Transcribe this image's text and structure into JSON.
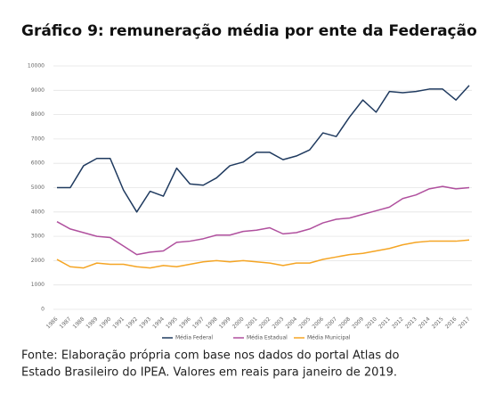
{
  "chart_data": {
    "type": "line",
    "title": "Gráfico 9: remuneração média por ente da Federação",
    "source": [
      "Fonte: Elaboração própria com base nos dados do portal Atlas do",
      "Estado Brasileiro do IPEA. Valores em reais para janeiro de 2019."
    ],
    "categories": [
      "1986",
      "1987",
      "1988",
      "1989",
      "1990",
      "1991",
      "1992",
      "1993",
      "1994",
      "1995",
      "1996",
      "1997",
      "1998",
      "1999",
      "2000",
      "2001",
      "2002",
      "2003",
      "2004",
      "2005",
      "2006",
      "2007",
      "2008",
      "2009",
      "2010",
      "2011",
      "2012",
      "2013",
      "2014",
      "2015",
      "2016",
      "2017"
    ],
    "series": [
      {
        "name": "Média Federal",
        "color": "#1f3a5f",
        "values": [
          5000,
          5000,
          5900,
          6200,
          6200,
          4900,
          4000,
          4850,
          4650,
          5800,
          5150,
          5100,
          5400,
          5900,
          6050,
          6450,
          6450,
          6150,
          6300,
          6550,
          7250,
          7100,
          7900,
          8600,
          8100,
          8950,
          8900,
          8950,
          9050,
          9050,
          8600,
          9200
        ]
      },
      {
        "name": "Média Estadual",
        "color": "#b0509e",
        "values": [
          3600,
          3300,
          3150,
          3000,
          2950,
          2600,
          2250,
          2350,
          2400,
          2750,
          2800,
          2900,
          3050,
          3050,
          3200,
          3250,
          3350,
          3100,
          3150,
          3300,
          3550,
          3700,
          3750,
          3900,
          4050,
          4200,
          4550,
          4700,
          4950,
          5050,
          4950,
          5000
        ]
      },
      {
        "name": "Média Municipal",
        "color": "#f5a524",
        "values": [
          2050,
          1750,
          1700,
          1900,
          1850,
          1850,
          1750,
          1700,
          1800,
          1750,
          1850,
          1950,
          2000,
          1950,
          2000,
          1950,
          1900,
          1800,
          1900,
          1900,
          2050,
          2150,
          2250,
          2300,
          2400,
          2500,
          2650,
          2750,
          2800,
          2800,
          2800,
          2850
        ]
      }
    ],
    "ylim": [
      0,
      10000
    ],
    "yticks": [
      0,
      1000,
      2000,
      3000,
      4000,
      5000,
      6000,
      7000,
      8000,
      9000,
      10000
    ],
    "grid": true,
    "legend": "bottom"
  }
}
